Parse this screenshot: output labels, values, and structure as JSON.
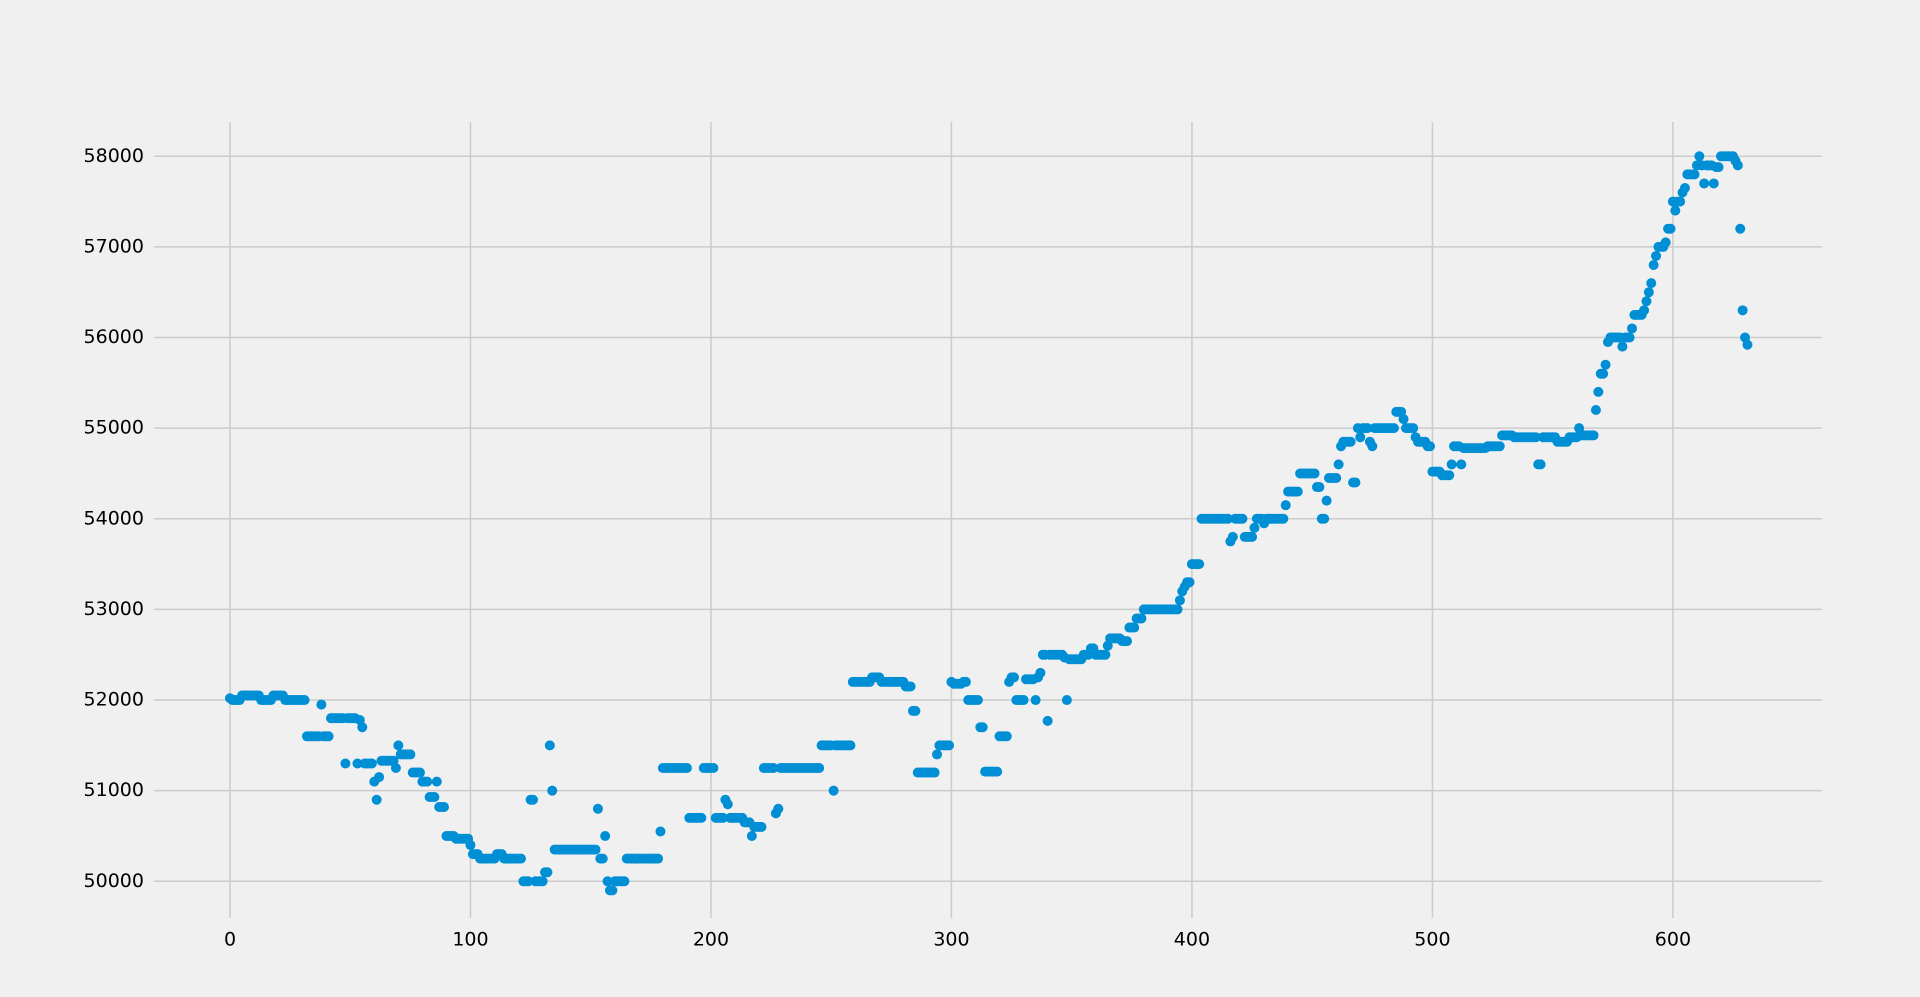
{
  "chart_data": {
    "type": "scatter",
    "color": "#008fd5",
    "grid": true,
    "xlim": [
      -31.6,
      662
    ],
    "ylim": [
      49595,
      58378
    ],
    "xticks": [
      0,
      100,
      200,
      300,
      400,
      500,
      600
    ],
    "yticks": [
      50000,
      51000,
      52000,
      53000,
      54000,
      55000,
      56000,
      57000,
      58000
    ],
    "x": [
      0,
      1,
      2,
      3,
      4,
      5,
      6,
      7,
      8,
      9,
      10,
      11,
      12,
      13,
      14,
      15,
      16,
      17,
      18,
      19,
      20,
      21,
      22,
      23,
      24,
      25,
      26,
      27,
      28,
      29,
      30,
      31,
      32,
      33,
      34,
      35,
      36,
      37,
      38,
      39,
      40,
      41,
      42,
      43,
      44,
      45,
      46,
      47,
      48,
      49,
      50,
      51,
      52,
      53,
      54,
      55,
      56,
      57,
      58,
      59,
      60,
      61,
      62,
      63,
      64,
      65,
      66,
      67,
      68,
      69,
      70,
      71,
      72,
      73,
      74,
      75,
      76,
      77,
      78,
      79,
      80,
      81,
      82,
      83,
      84,
      85,
      86,
      87,
      88,
      89,
      90,
      91,
      92,
      93,
      94,
      95,
      96,
      97,
      98,
      99,
      100,
      101,
      102,
      103,
      104,
      105,
      106,
      107,
      108,
      109,
      110,
      111,
      112,
      113,
      114,
      115,
      116,
      117,
      118,
      119,
      120,
      121,
      122,
      123,
      124,
      125,
      126,
      127,
      128,
      129,
      130,
      131,
      132,
      133,
      134,
      135,
      136,
      137,
      138,
      139,
      140,
      141,
      142,
      143,
      144,
      145,
      146,
      147,
      148,
      149,
      150,
      151,
      152,
      153,
      154,
      155,
      156,
      157,
      158,
      159,
      160,
      161,
      162,
      163,
      164,
      165,
      166,
      167,
      168,
      169,
      170,
      171,
      172,
      173,
      174,
      175,
      176,
      177,
      178,
      179,
      180,
      181,
      182,
      183,
      184,
      185,
      186,
      187,
      188,
      189,
      190,
      191,
      192,
      193,
      194,
      195,
      196,
      197,
      198,
      199,
      200,
      201,
      202,
      203,
      204,
      205,
      206,
      207,
      208,
      209,
      210,
      211,
      212,
      213,
      214,
      215,
      216,
      217,
      218,
      219,
      220,
      221,
      222,
      223,
      224,
      225,
      226,
      227,
      228,
      229,
      230,
      231,
      232,
      233,
      234,
      235,
      236,
      237,
      238,
      239,
      240,
      241,
      242,
      243,
      244,
      245,
      246,
      247,
      248,
      249,
      250,
      251,
      252,
      253,
      254,
      255,
      256,
      257,
      258,
      259,
      260,
      261,
      262,
      263,
      264,
      265,
      266,
      267,
      268,
      269,
      270,
      271,
      272,
      273,
      274,
      275,
      276,
      277,
      278,
      279,
      280,
      281,
      282,
      283,
      284,
      285,
      286,
      287,
      288,
      289,
      290,
      291,
      292,
      293,
      294,
      295,
      296,
      297,
      298,
      299,
      300,
      301,
      302,
      303,
      304,
      305,
      306,
      307,
      308,
      309,
      310,
      311,
      312,
      313,
      314,
      315,
      316,
      317,
      318,
      319,
      320,
      321,
      322,
      323,
      324,
      325,
      326,
      327,
      328,
      329,
      330,
      331,
      332,
      333,
      334,
      335,
      336,
      337,
      338,
      339,
      340,
      341,
      342,
      343,
      344,
      345,
      346,
      347,
      348,
      349,
      350,
      351,
      352,
      353,
      354,
      355,
      356,
      357,
      358,
      359,
      360,
      361,
      362,
      363,
      364,
      365,
      366,
      367,
      368,
      369,
      370,
      371,
      372,
      373,
      374,
      375,
      376,
      377,
      378,
      379,
      380,
      381,
      382,
      383,
      384,
      385,
      386,
      387,
      388,
      389,
      390,
      391,
      392,
      393,
      394,
      395,
      396,
      397,
      398,
      399,
      400,
      401,
      402,
      403,
      404,
      405,
      406,
      407,
      408,
      409,
      410,
      411,
      412,
      413,
      414,
      415,
      416,
      417,
      418,
      419,
      420,
      421,
      422,
      423,
      424,
      425,
      426,
      427,
      428,
      429,
      430,
      431,
      432,
      433,
      434,
      435,
      436,
      437,
      438,
      439,
      440,
      441,
      442,
      443,
      444,
      445,
      446,
      447,
      448,
      449,
      450,
      451,
      452,
      453,
      454,
      455,
      456,
      457,
      458,
      459,
      460,
      461,
      462,
      463,
      464,
      465,
      466,
      467,
      468,
      469,
      470,
      471,
      472,
      473,
      474,
      475,
      476,
      477,
      478,
      479,
      480,
      481,
      482,
      483,
      484,
      485,
      486,
      487,
      488,
      489,
      490,
      491,
      492,
      493,
      494,
      495,
      496,
      497,
      498,
      499,
      500,
      501,
      502,
      503,
      504,
      505,
      506,
      507,
      508,
      509,
      510,
      511,
      512,
      513,
      514,
      515,
      516,
      517,
      518,
      519,
      520,
      521,
      522,
      523,
      524,
      525,
      526,
      527,
      528,
      529,
      530,
      531,
      532,
      533,
      534,
      535,
      536,
      537,
      538,
      539,
      540,
      541,
      542,
      543,
      544,
      545,
      546,
      547,
      548,
      549,
      550,
      551,
      552,
      553,
      554,
      555,
      556,
      557,
      558,
      559,
      560,
      561,
      562,
      563,
      564,
      565,
      566,
      567,
      568,
      569,
      570,
      571,
      572,
      573,
      574,
      575,
      576,
      577,
      578,
      579,
      580,
      581,
      582,
      583,
      584,
      585,
      586,
      587,
      588,
      589,
      590,
      591,
      592,
      593,
      594,
      595,
      596,
      597,
      598,
      599,
      600,
      601,
      602,
      603,
      604,
      605,
      606,
      607,
      608,
      609,
      610,
      611,
      612,
      613,
      614,
      615,
      616,
      617,
      618,
      619,
      620,
      621,
      622,
      623,
      624,
      625,
      626,
      627,
      628,
      629,
      630,
      631
    ],
    "values": [
      52020,
      52000,
      52000,
      52000,
      52000,
      52050,
      52050,
      52050,
      52050,
      52050,
      52050,
      52050,
      52050,
      52000,
      52000,
      52000,
      52000,
      52000,
      52050,
      52050,
      52050,
      52050,
      52050,
      52000,
      52000,
      52000,
      52000,
      52000,
      52000,
      52000,
      52000,
      52000,
      51600,
      51600,
      51600,
      51600,
      51600,
      51600,
      51950,
      51600,
      51600,
      51600,
      51800,
      51800,
      51800,
      51800,
      51800,
      51800,
      51300,
      51800,
      51800,
      51800,
      51800,
      51300,
      51780,
      51700,
      51300,
      51300,
      51300,
      51300,
      51100,
      50900,
      51150,
      51330,
      51330,
      51330,
      51330,
      51330,
      51330,
      51250,
      51500,
      51400,
      51400,
      51400,
      51400,
      51400,
      51200,
      51200,
      51200,
      51200,
      51100,
      51100,
      51100,
      50930,
      50930,
      50930,
      51100,
      50820,
      50820,
      50820,
      50500,
      50500,
      50500,
      50500,
      50470,
      50470,
      50470,
      50470,
      50470,
      50470,
      50400,
      50300,
      50300,
      50300,
      50250,
      50250,
      50250,
      50250,
      50250,
      50250,
      50250,
      50300,
      50300,
      50300,
      50250,
      50250,
      50250,
      50250,
      50250,
      50250,
      50250,
      50250,
      50000,
      50000,
      50000,
      50900,
      50900,
      50000,
      50000,
      50000,
      50000,
      50100,
      50100,
      51500,
      51000,
      50350,
      50350,
      50350,
      50350,
      50350,
      50350,
      50350,
      50350,
      50350,
      50350,
      50350,
      50350,
      50350,
      50350,
      50350,
      50350,
      50350,
      50350,
      50800,
      50250,
      50250,
      50500,
      50000,
      49900,
      49900,
      50000,
      50000,
      50000,
      50000,
      50000,
      50250,
      50250,
      50250,
      50250,
      50250,
      50250,
      50250,
      50250,
      50250,
      50250,
      50250,
      50250,
      50250,
      50250,
      50550,
      51250,
      51250,
      51250,
      51250,
      51250,
      51250,
      51250,
      51250,
      51250,
      51250,
      51250,
      50700,
      50700,
      50700,
      50700,
      50700,
      50700,
      51250,
      51250,
      51250,
      51250,
      51250,
      50700,
      50700,
      50700,
      50700,
      50900,
      50850,
      50700,
      50700,
      50700,
      50700,
      50700,
      50700,
      50650,
      50650,
      50650,
      50500,
      50600,
      50600,
      50600,
      50600,
      51250,
      51250,
      51250,
      51250,
      51250,
      50750,
      50800,
      51250,
      51250,
      51250,
      51250,
      51250,
      51250,
      51250,
      51250,
      51250,
      51250,
      51250,
      51250,
      51250,
      51250,
      51250,
      51250,
      51250,
      51500,
      51500,
      51500,
      51500,
      51500,
      51000,
      51500,
      51500,
      51500,
      51500,
      51500,
      51500,
      51500,
      52200,
      52200,
      52200,
      52200,
      52200,
      52200,
      52200,
      52200,
      52250,
      52250,
      52250,
      52250,
      52200,
      52200,
      52200,
      52200,
      52200,
      52200,
      52200,
      52200,
      52200,
      52200,
      52150,
      52150,
      52150,
      51880,
      51880,
      51200,
      51200,
      51200,
      51200,
      51200,
      51200,
      51200,
      51200,
      51400,
      51500,
      51500,
      51500,
      51500,
      51500,
      52200,
      52180,
      52180,
      52180,
      52180,
      52200,
      52200,
      52000,
      52000,
      52000,
      52000,
      52000,
      51700,
      51700,
      51210,
      51210,
      51210,
      51210,
      51210,
      51210,
      51600,
      51600,
      51600,
      51600,
      52200,
      52250,
      52250,
      52000,
      52000,
      52000,
      52000,
      52230,
      52230,
      52230,
      52230,
      52000,
      52250,
      52300,
      52500,
      52500,
      51770,
      52500,
      52500,
      52500,
      52500,
      52500,
      52500,
      52470,
      52000,
      52450,
      52450,
      52450,
      52450,
      52450,
      52450,
      52500,
      52500,
      52500,
      52570,
      52570,
      52500,
      52500,
      52500,
      52500,
      52500,
      52600,
      52680,
      52680,
      52680,
      52680,
      52680,
      52650,
      52650,
      52650,
      52800,
      52800,
      52800,
      52900,
      52900,
      52900,
      53000,
      53000,
      53000,
      53000,
      53000,
      53000,
      53000,
      53000,
      53000,
      53000,
      53000,
      53000,
      53000,
      53000,
      53000,
      53100,
      53200,
      53250,
      53300,
      53300,
      53500,
      53500,
      53500,
      53500,
      54000,
      54000,
      54000,
      54000,
      54000,
      54000,
      54000,
      54000,
      54000,
      54000,
      54000,
      54000,
      53750,
      53800,
      54000,
      54000,
      54000,
      54000,
      53800,
      53800,
      53800,
      53800,
      53900,
      54000,
      54000,
      54000,
      53950,
      54000,
      54000,
      54000,
      54000,
      54000,
      54000,
      54000,
      54000,
      54150,
      54300,
      54300,
      54300,
      54300,
      54300,
      54500,
      54500,
      54500,
      54500,
      54500,
      54500,
      54500,
      54350,
      54350,
      54000,
      54000,
      54200,
      54450,
      54450,
      54450,
      54450,
      54600,
      54800,
      54850,
      54850,
      54850,
      54850,
      54400,
      54400,
      55000,
      54900,
      55000,
      55000,
      55000,
      54850,
      54800,
      55000,
      55000,
      55000,
      55000,
      55000,
      55000,
      55000,
      55000,
      55000,
      55180,
      55180,
      55180,
      55100,
      55000,
      55000,
      55000,
      55000,
      54900,
      54850,
      54850,
      54850,
      54850,
      54800,
      54800,
      54520,
      54520,
      54520,
      54520,
      54480,
      54480,
      54480,
      54480,
      54600,
      54800,
      54800,
      54800,
      54600,
      54780,
      54780,
      54780,
      54780,
      54780,
      54780,
      54780,
      54780,
      54780,
      54780,
      54800,
      54800,
      54800,
      54800,
      54800,
      54800,
      54920,
      54920,
      54920,
      54920,
      54920,
      54900,
      54900,
      54900,
      54900,
      54900,
      54900,
      54900,
      54900,
      54900,
      54900,
      54600,
      54600,
      54900,
      54900,
      54900,
      54900,
      54900,
      54900,
      54850,
      54850,
      54850,
      54850,
      54850,
      54900,
      54900,
      54900,
      54900,
      55000,
      54920,
      54920,
      54920,
      54920,
      54920,
      54920,
      55200,
      55400,
      55600,
      55600,
      55700,
      55950,
      56000,
      56000,
      56000,
      56000,
      56000,
      55900,
      56000,
      56000,
      56000,
      56100,
      56250,
      56250,
      56250,
      56250,
      56300,
      56400,
      56500,
      56600,
      56800,
      56900,
      57000,
      57000,
      57000,
      57050,
      57200,
      57200,
      57500,
      57400,
      57500,
      57500,
      57600,
      57650,
      57800,
      57800,
      57800,
      57800,
      57900,
      58000,
      57900,
      57700,
      57900,
      57900,
      57900,
      57700,
      57880,
      57880,
      58000,
      58000,
      58000,
      58000,
      58000,
      58000,
      57950,
      57900,
      57200,
      56300,
      56000,
      55920
    ]
  }
}
